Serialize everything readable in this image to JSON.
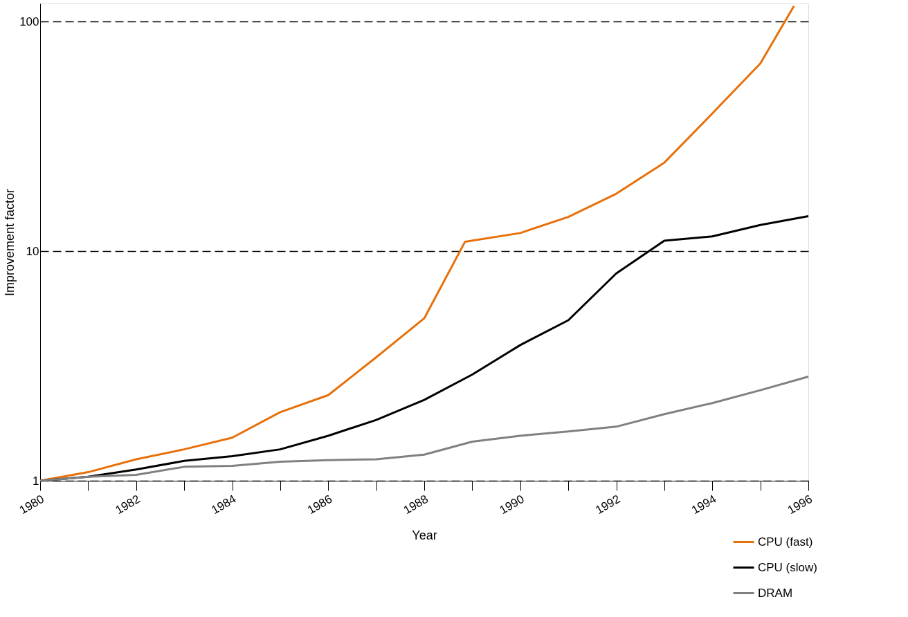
{
  "chart_data": {
    "type": "line",
    "xlabel": "Year",
    "ylabel": "Improvement factor",
    "x": [
      1980,
      1981,
      1982,
      1983,
      1984,
      1985,
      1986,
      1987,
      1988,
      1989,
      1990,
      1991,
      1992,
      1993,
      1994,
      1995,
      1996
    ],
    "series": [
      {
        "name": "CPU (fast)",
        "color": "#e8700a",
        "x": [
          1980,
          1981,
          1982,
          1983,
          1984,
          1985,
          1986,
          1987,
          1988,
          1988.85,
          1990,
          1991,
          1992,
          1993,
          1994,
          1995,
          1995.7
        ],
        "values": [
          1,
          1.09,
          1.24,
          1.37,
          1.54,
          1.99,
          2.36,
          3.45,
          5.1,
          11.0,
          12.0,
          14.1,
          17.8,
          24.3,
          39.8,
          65.7,
          117
        ]
      },
      {
        "name": "CPU (slow)",
        "color": "#000000",
        "values": [
          1,
          1.04,
          1.12,
          1.22,
          1.28,
          1.37,
          1.57,
          1.84,
          2.25,
          2.9,
          3.9,
          5.0,
          8.0,
          11.1,
          11.6,
          13.0,
          14.2
        ]
      },
      {
        "name": "DRAM",
        "color": "#808080",
        "values": [
          1,
          1.04,
          1.06,
          1.15,
          1.16,
          1.21,
          1.23,
          1.24,
          1.3,
          1.48,
          1.57,
          1.64,
          1.72,
          1.95,
          2.18,
          2.48,
          2.84
        ]
      }
    ],
    "log": "y",
    "xlim": [
      1980,
      1996
    ],
    "ylim": [
      1,
      120
    ],
    "xticks": [
      1980,
      {
        "value": 1981,
        "label": null
      },
      1982,
      {
        "value": 1983,
        "label": null
      },
      1984,
      {
        "value": 1985,
        "label": null
      },
      1986,
      {
        "value": 1987,
        "label": null
      },
      1988,
      {
        "value": 1989,
        "label": null
      },
      1990,
      {
        "value": 1991,
        "label": null
      },
      1992,
      {
        "value": 1993,
        "label": null
      },
      1994,
      {
        "value": 1995,
        "label": null
      },
      1996
    ],
    "yticks": [
      1,
      10,
      100
    ],
    "grid": "y",
    "legend": "bottom right",
    "marker": "none",
    "line_style": "solid"
  }
}
